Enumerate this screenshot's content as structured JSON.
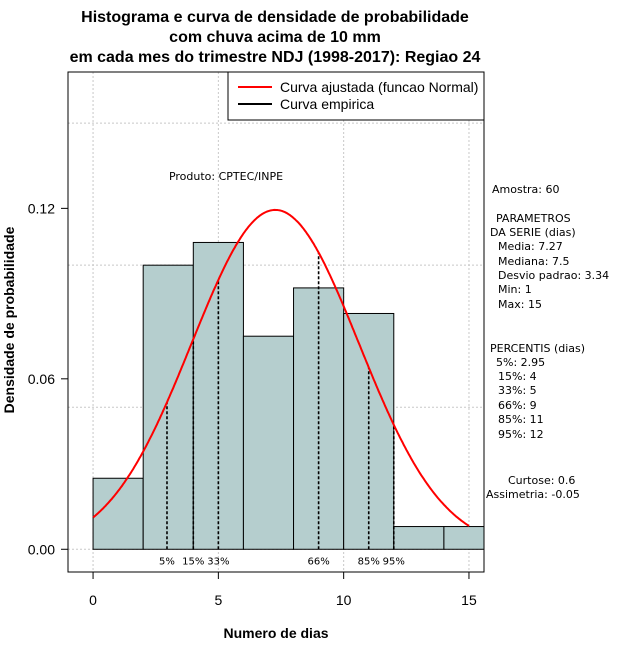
{
  "chart_data": {
    "type": "bar",
    "title_lines": [
      "Histograma e curva de densidade de probabilidade",
      "com chuva acima de 10 mm",
      "em cada mes do trimestre NDJ (1998-2017): Regiao 24"
    ],
    "xlabel": "Numero de dias",
    "ylabel": "Densidade de probabilidade",
    "xlim": [
      -1,
      15.6
    ],
    "ylim": [
      -0.008,
      0.168
    ],
    "x_ticks": [
      0,
      5,
      10,
      15
    ],
    "y_ticks": [
      0.0,
      0.06,
      0.12
    ],
    "y_tick_labels": [
      "0.00",
      "0.06",
      "0.12"
    ],
    "grid": true,
    "grid_x": [
      0,
      5,
      10,
      15
    ],
    "grid_y": [
      0.0,
      0.05,
      0.1,
      0.15
    ],
    "histogram": {
      "bin_edges": [
        0,
        2,
        4,
        6,
        8,
        10,
        12,
        14,
        16
      ],
      "densities": [
        0.025,
        0.1,
        0.108,
        0.075,
        0.092,
        0.083,
        0.008,
        0.008
      ],
      "fill_color": "#b5cece"
    },
    "normal_curve": {
      "name": "Curva ajustada (funcao Normal)",
      "mean": 7.27,
      "sd": 3.34,
      "x_range": [
        0,
        15
      ],
      "color": "#ff0000"
    },
    "empirical_curve": {
      "name": "Curva empirica",
      "color": "#000000"
    },
    "percentile_lines": [
      {
        "x": 2.95,
        "label": "5%"
      },
      {
        "x": 4,
        "label": "15%"
      },
      {
        "x": 5,
        "label": "33%"
      },
      {
        "x": 9,
        "label": "66%"
      },
      {
        "x": 11,
        "label": "85%"
      },
      {
        "x": 12,
        "label": "95%"
      }
    ],
    "legend": {
      "position": "top-right",
      "items": [
        {
          "label": "Curva ajustada (funcao Normal)",
          "color": "#ff0000"
        },
        {
          "label": "Curva empirica",
          "color": "#000000"
        }
      ]
    },
    "annotation": "Produto: CPTEC/INPE",
    "stats": {
      "amostra": "Amostra: 60",
      "parametros_title": "PARAMETROS",
      "parametros_sub": "DA SERIE (dias)",
      "media": "Media: 7.27",
      "mediana": "Mediana: 7.5",
      "desvio": "Desvio padrao: 3.34",
      "min": "Min: 1",
      "max": "Max: 15",
      "percentis_title": "PERCENTIS (dias)",
      "p5": "5%: 2.95",
      "p15": "15%: 4",
      "p33": "33%: 5",
      "p66": "66%: 9",
      "p85": "85%: 11",
      "p95": "95%: 12",
      "curtose": "Curtose: 0.6",
      "assimetria": "Assimetria: -0.05"
    }
  }
}
